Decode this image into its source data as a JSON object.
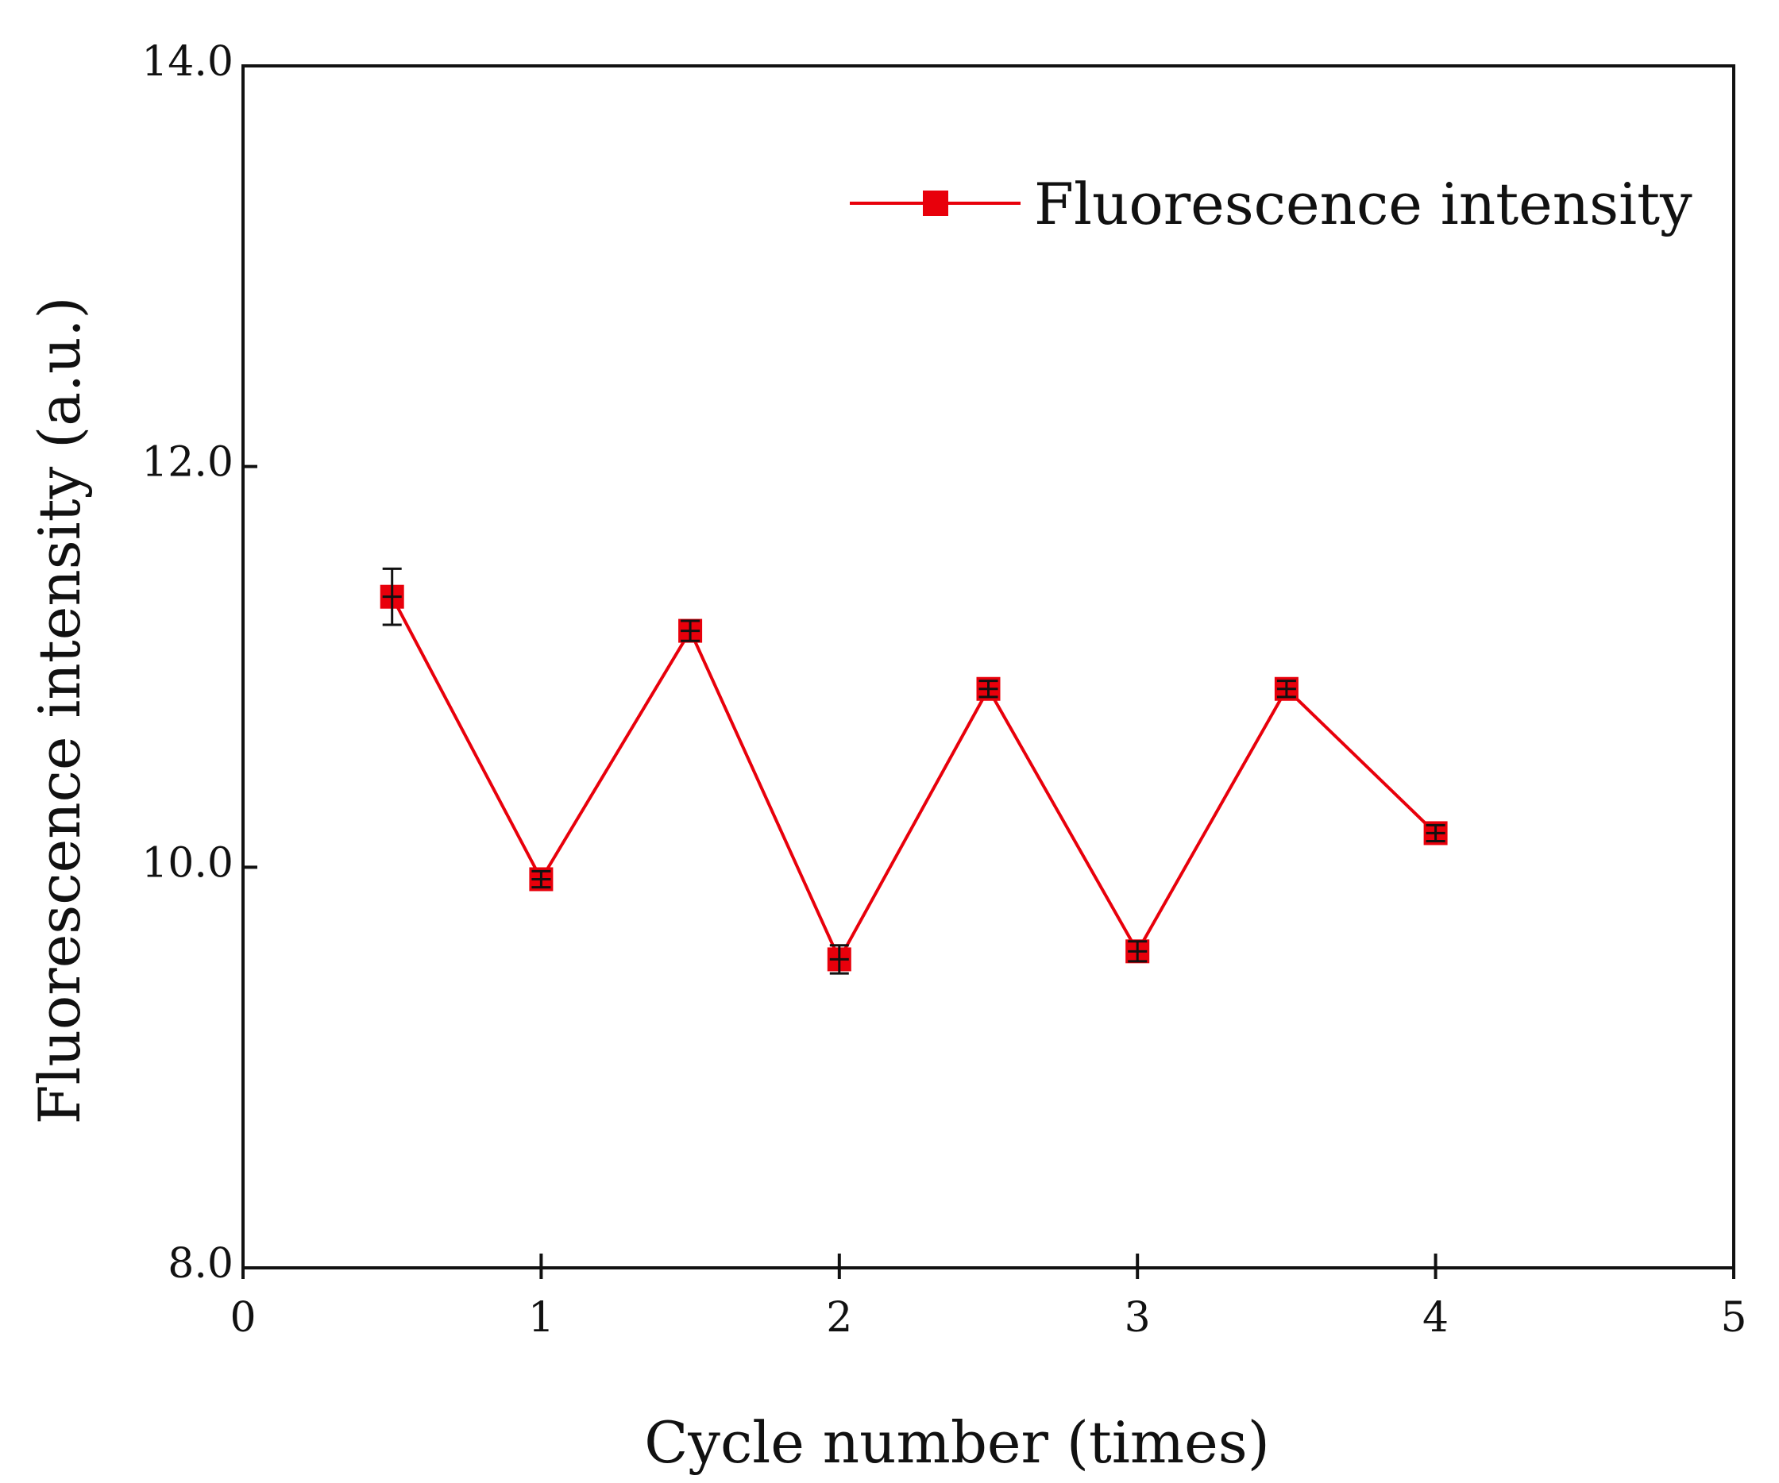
{
  "chart_data": {
    "type": "line",
    "title": "",
    "xlabel": "Cycle number (times)",
    "ylabel": "Fluorescence intensity (a.u.)",
    "xlim": [
      0,
      5
    ],
    "ylim": [
      8.0,
      14.0
    ],
    "x_ticks": [
      0,
      1,
      2,
      3,
      4,
      5
    ],
    "x_tick_labels": [
      "0",
      "1",
      "2",
      "3",
      "4",
      "5"
    ],
    "y_ticks": [
      8.0,
      10.0,
      12.0,
      14.0
    ],
    "y_tick_labels": [
      "8.0",
      "10.0",
      "12.0",
      "14.0"
    ],
    "grid": false,
    "legend_position": "top-right",
    "series": [
      {
        "name": "Fluorescence intensity",
        "color": "#e8000b",
        "marker": "square",
        "x": [
          0.5,
          1.0,
          1.5,
          2.0,
          2.5,
          3.0,
          3.5,
          4.0
        ],
        "values": [
          11.35,
          9.94,
          11.18,
          9.54,
          10.89,
          9.58,
          10.89,
          10.17
        ],
        "errors": [
          0.14,
          0.04,
          0.05,
          0.07,
          0.04,
          0.05,
          0.04,
          0.04
        ]
      }
    ]
  }
}
